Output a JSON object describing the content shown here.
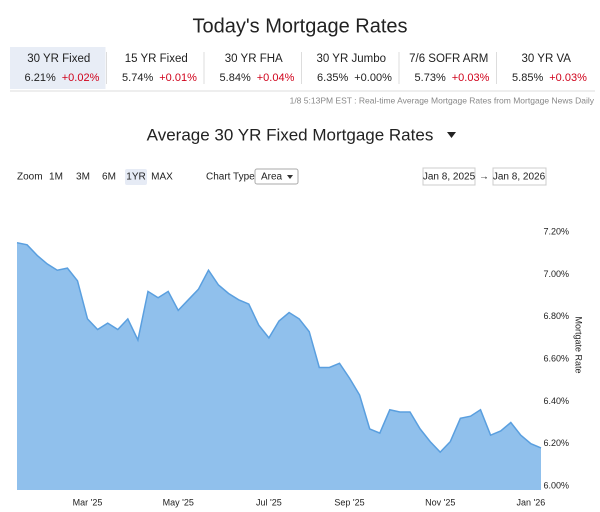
{
  "title": "Today's Mortgage Rates",
  "rates": [
    {
      "name": "30 YR Fixed",
      "rate": "6.21%",
      "change": "+0.02%",
      "color": "#d0021b"
    },
    {
      "name": "15 YR Fixed",
      "rate": "5.74%",
      "change": "+0.01%",
      "color": "#d0021b"
    },
    {
      "name": "30 YR FHA",
      "rate": "5.84%",
      "change": "+0.04%",
      "color": "#d0021b"
    },
    {
      "name": "30 YR Jumbo",
      "rate": "6.35%",
      "change": "+0.00%",
      "color": "#222222"
    },
    {
      "name": "7/6 SOFR ARM",
      "rate": "5.73%",
      "change": "+0.03%",
      "color": "#d0021b"
    },
    {
      "name": "30 YR VA",
      "rate": "5.85%",
      "change": "+0.03%",
      "color": "#d0021b"
    }
  ],
  "active_rate": 0,
  "timestamp": "1/8 5:13PM EST : Real-time Average Mortgage Rates from Mortgage News Daily",
  "controls": {
    "zoom_label": "Zoom",
    "zoom_options": [
      "1M",
      "3M",
      "6M",
      "1YR",
      "MAX"
    ],
    "zoom_active": 3,
    "chart_type_label": "Chart Type",
    "chart_type": "Area",
    "date_from": "Jan 8, 2025",
    "arrow": "→",
    "date_to": "Jan 8, 2026"
  },
  "chart_data": {
    "type": "area",
    "title": "Average 30 YR Fixed Mortgage Rates",
    "y_label": "Mortgate Rate",
    "categories": [
      null,
      null,
      null,
      null,
      null,
      null,
      null,
      "Mar '25",
      null,
      null,
      null,
      null,
      null,
      null,
      null,
      null,
      "May '25",
      null,
      null,
      null,
      null,
      null,
      null,
      null,
      null,
      "Jul '25",
      null,
      null,
      null,
      null,
      null,
      null,
      null,
      "Sep '25",
      null,
      null,
      null,
      null,
      null,
      null,
      null,
      null,
      "Nov '25",
      null,
      null,
      null,
      null,
      null,
      null,
      null,
      null,
      "Jan '26",
      null
    ],
    "values": [
      7.15,
      7.14,
      7.09,
      7.05,
      7.02,
      7.03,
      6.97,
      6.79,
      6.74,
      6.77,
      6.74,
      6.79,
      6.69,
      6.92,
      6.89,
      6.92,
      6.83,
      6.88,
      6.93,
      7.02,
      6.95,
      6.91,
      6.88,
      6.86,
      6.76,
      6.7,
      6.78,
      6.82,
      6.79,
      6.73,
      6.56,
      6.56,
      6.58,
      6.51,
      6.43,
      6.27,
      6.25,
      6.36,
      6.35,
      6.35,
      6.27,
      6.21,
      6.16,
      6.21,
      6.32,
      6.33,
      6.36,
      6.24,
      6.26,
      6.3,
      6.24,
      6.2,
      6.18
    ],
    "color": "#90c0ec",
    "line_color": "#5a9fdf",
    "ylim": [
      6.0,
      7.3
    ],
    "yticks": [
      {
        "value": 6.0,
        "label": "6.00%"
      },
      {
        "value": 6.2,
        "label": "6.20%"
      },
      {
        "value": 6.4,
        "label": "6.40%"
      },
      {
        "value": 6.6,
        "label": "6.60%"
      },
      {
        "value": 6.8,
        "label": "6.80%"
      },
      {
        "value": 7.0,
        "label": "7.00%"
      },
      {
        "value": 7.2,
        "label": "7.20%"
      }
    ],
    "grid": false
  }
}
